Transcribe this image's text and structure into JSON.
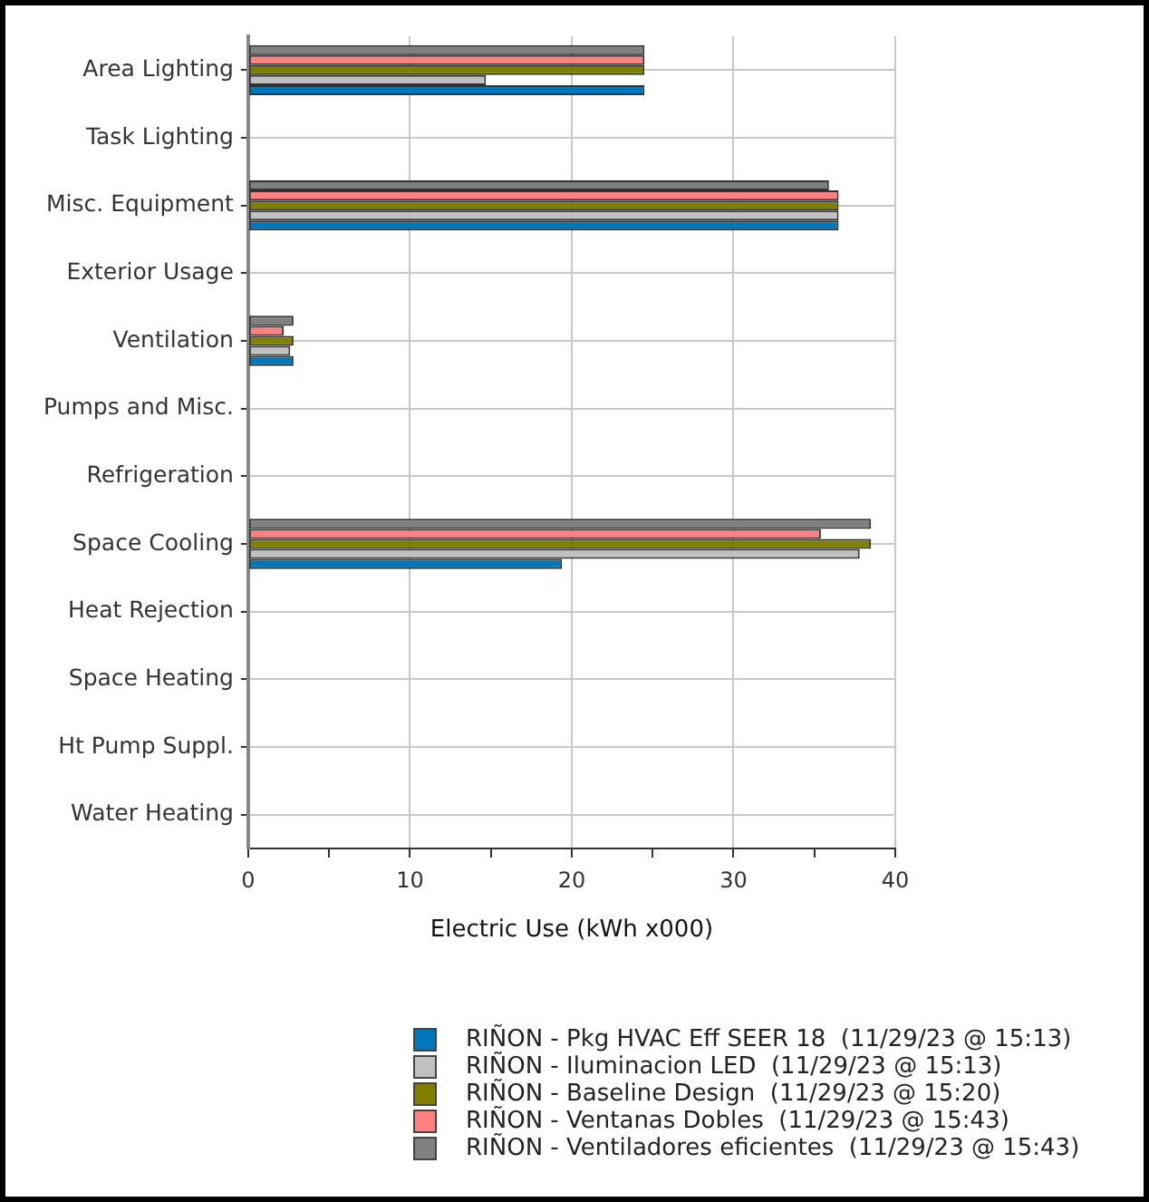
{
  "chart_data": {
    "type": "bar",
    "orientation": "horizontal",
    "xlabel": "Electric Use (kWh x000)",
    "categories": [
      "Area Lighting",
      "Task Lighting",
      "Misc. Equipment",
      "Exterior Usage",
      "Ventilation",
      "Pumps and Misc.",
      "Refrigeration",
      "Space Cooling",
      "Heat Rejection",
      "Space Heating",
      "Ht Pump Suppl.",
      "Water Heating"
    ],
    "series": [
      {
        "name": "RIÑON - Pkg HVAC Eff SEER 18  (11/29/23 @ 15:13)",
        "color": "#0077bb",
        "values": [
          24.5,
          0,
          36.5,
          0,
          2.8,
          0,
          0,
          19.4,
          0,
          0,
          0,
          0
        ]
      },
      {
        "name": "RIÑON - Iluminacion LED  (11/29/23 @ 15:13)",
        "color": "#c0c0c0",
        "values": [
          14.7,
          0,
          36.5,
          0,
          2.6,
          0,
          0,
          37.8,
          0,
          0,
          0,
          0
        ]
      },
      {
        "name": "RIÑON - Baseline Design  (11/29/23 @ 15:20)",
        "color": "#808000",
        "values": [
          24.5,
          0,
          36.5,
          0,
          2.8,
          0,
          0,
          38.5,
          0,
          0,
          0,
          0
        ]
      },
      {
        "name": "RIÑON - Ventanas Dobles  (11/29/23 @ 15:43)",
        "color": "#ff8080",
        "values": [
          24.5,
          0,
          36.5,
          0,
          2.2,
          0,
          0,
          35.4,
          0,
          0,
          0,
          0
        ]
      },
      {
        "name": "RIÑON - Ventiladores eficientes  (11/29/23 @ 15:43)",
        "color": "#808080",
        "values": [
          24.5,
          0,
          35.9,
          0,
          2.8,
          0,
          0,
          38.5,
          0,
          0,
          0,
          0
        ]
      }
    ],
    "xlim": [
      0,
      40
    ],
    "xticks": [
      0,
      {
        "value": 5,
        "label": null
      },
      10,
      {
        "value": 15,
        "label": null
      },
      20,
      {
        "value": 25,
        "label": null
      },
      30,
      {
        "value": 35,
        "label": null
      },
      40
    ],
    "grid": true,
    "legend": "bottom"
  }
}
